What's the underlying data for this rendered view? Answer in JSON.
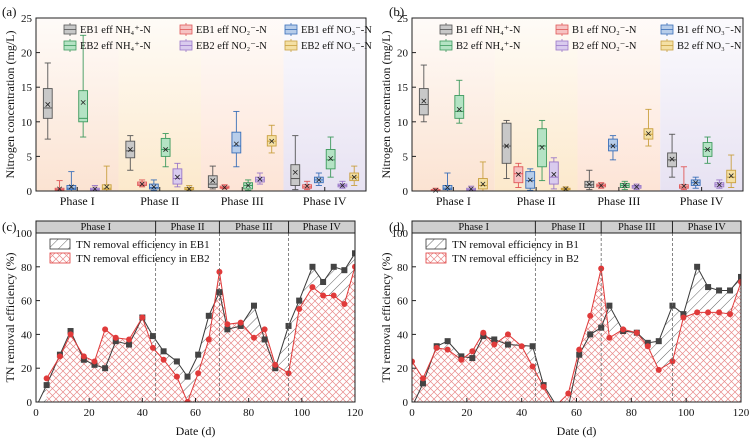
{
  "chart_data": [
    {
      "panel": "(a)",
      "type": "box",
      "ylabel": "Nitrogen concentration (mg/L)",
      "ylim": [
        0,
        25
      ],
      "yticks": [
        0,
        5,
        10,
        15,
        20,
        25
      ],
      "categories": [
        "Phase I",
        "Phase II",
        "Phase III",
        "Phase IV"
      ],
      "phase_colors": [
        "#fbe3d2",
        "#fce9cc",
        "#fde4d6",
        "#e7e2f2"
      ],
      "series": [
        {
          "name": "EB1 eff NH₄⁺-N",
          "color": "#555555",
          "fill": "#c8c8c8",
          "boxes": [
            {
              "min": 7.5,
              "q1": 10.5,
              "med": 12.0,
              "q3": 14.8,
              "max": 18.5,
              "mean": 12.5
            },
            {
              "min": 3.0,
              "q1": 4.8,
              "med": 5.8,
              "q3": 7.2,
              "max": 8.0,
              "mean": 6.0
            },
            {
              "min": 0.3,
              "q1": 0.5,
              "med": 1.0,
              "q3": 2.2,
              "max": 3.6,
              "mean": 1.5
            },
            {
              "min": 0.2,
              "q1": 0.8,
              "med": 1.8,
              "q3": 3.8,
              "max": 8.0,
              "mean": 2.7
            }
          ]
        },
        {
          "name": "EB1 eff NO₂⁻-N",
          "color": "#e05858",
          "fill": "#f6c3c3",
          "boxes": [
            {
              "min": 0.0,
              "q1": 0.1,
              "med": 0.2,
              "q3": 0.4,
              "max": 1.5,
              "mean": 0.3
            },
            {
              "min": 0.6,
              "q1": 0.8,
              "med": 1.0,
              "q3": 1.3,
              "max": 1.6,
              "mean": 1.0
            },
            {
              "min": 0.3,
              "q1": 0.4,
              "med": 0.5,
              "q3": 0.7,
              "max": 0.9,
              "mean": 0.5
            },
            {
              "min": 0.2,
              "q1": 0.4,
              "med": 0.6,
              "q3": 0.9,
              "max": 1.4,
              "mean": 0.7
            }
          ]
        },
        {
          "name": "EB1 eff NO₃⁻-N",
          "color": "#3a6fb8",
          "fill": "#b7cdea",
          "boxes": [
            {
              "min": 0.0,
              "q1": 0.2,
              "med": 0.4,
              "q3": 0.8,
              "max": 2.8,
              "mean": 0.6
            },
            {
              "min": 0.1,
              "q1": 0.3,
              "med": 0.5,
              "q3": 1.0,
              "max": 1.6,
              "mean": 0.6
            },
            {
              "min": 3.5,
              "q1": 5.5,
              "med": 6.5,
              "q3": 8.5,
              "max": 11.5,
              "mean": 6.8
            },
            {
              "min": 0.8,
              "q1": 1.2,
              "med": 1.6,
              "q3": 2.0,
              "max": 2.6,
              "mean": 1.6
            }
          ]
        },
        {
          "name": "EB2 eff NH₄⁺-N",
          "color": "#3e9a5e",
          "fill": "#b4e3c4",
          "boxes": [
            {
              "min": 7.8,
              "q1": 10.0,
              "med": 10.5,
              "q3": 14.5,
              "max": 22.5,
              "mean": 12.8
            },
            {
              "min": 3.5,
              "q1": 5.0,
              "med": 6.0,
              "q3": 7.6,
              "max": 8.3,
              "mean": 6.0
            },
            {
              "min": 0.1,
              "q1": 0.3,
              "med": 0.8,
              "q3": 1.2,
              "max": 1.6,
              "mean": 0.8
            },
            {
              "min": 2.0,
              "q1": 3.2,
              "med": 4.5,
              "q3": 6.0,
              "max": 7.8,
              "mean": 4.7
            }
          ]
        },
        {
          "name": "EB2 eff NO₂⁻-N",
          "color": "#9a78c8",
          "fill": "#d9cbee",
          "boxes": [
            {
              "min": 0.0,
              "q1": 0.1,
              "med": 0.2,
              "q3": 0.4,
              "max": 0.8,
              "mean": 0.3
            },
            {
              "min": 0.6,
              "q1": 1.0,
              "med": 1.8,
              "q3": 3.2,
              "max": 4.0,
              "mean": 2.0
            },
            {
              "min": 1.0,
              "q1": 1.3,
              "med": 1.6,
              "q3": 2.0,
              "max": 2.6,
              "mean": 1.7
            },
            {
              "min": 0.4,
              "q1": 0.6,
              "med": 0.8,
              "q3": 1.0,
              "max": 1.4,
              "mean": 0.8
            }
          ]
        },
        {
          "name": "EB2 eff NO₃⁻-N",
          "color": "#c9a040",
          "fill": "#f4e0a4",
          "boxes": [
            {
              "min": 0.0,
              "q1": 0.2,
              "med": 0.4,
              "q3": 0.9,
              "max": 3.6,
              "mean": 0.6
            },
            {
              "min": 0.1,
              "q1": 0.2,
              "med": 0.3,
              "q3": 0.5,
              "max": 0.8,
              "mean": 0.3
            },
            {
              "min": 5.5,
              "q1": 6.5,
              "med": 7.2,
              "q3": 8.0,
              "max": 9.5,
              "mean": 7.2
            },
            {
              "min": 0.8,
              "q1": 1.5,
              "med": 2.0,
              "q3": 2.6,
              "max": 3.6,
              "mean": 2.0
            }
          ]
        }
      ]
    },
    {
      "panel": "(b)",
      "type": "box",
      "ylabel": "Nitrogen concentration (mg/L)",
      "ylim": [
        0,
        25
      ],
      "yticks": [
        0,
        5,
        10,
        15,
        20,
        25
      ],
      "categories": [
        "Phase I",
        "Phase II",
        "Phase III",
        "Phase IV"
      ],
      "phase_colors": [
        "#fbe3d2",
        "#fce9cc",
        "#fde4d6",
        "#e7e2f2"
      ],
      "series": [
        {
          "name": "B1 eff NH₄⁺-N",
          "color": "#555555",
          "fill": "#c8c8c8",
          "boxes": [
            {
              "min": 10.0,
              "q1": 11.0,
              "med": 12.5,
              "q3": 14.8,
              "max": 18.2,
              "mean": 13.0
            },
            {
              "min": 1.8,
              "q1": 4.0,
              "med": 6.5,
              "q3": 9.8,
              "max": 10.2,
              "mean": 6.5
            },
            {
              "min": 0.2,
              "q1": 0.5,
              "med": 0.9,
              "q3": 1.4,
              "max": 3.0,
              "mean": 1.0
            },
            {
              "min": 2.0,
              "q1": 3.5,
              "med": 4.5,
              "q3": 5.5,
              "max": 8.2,
              "mean": 4.6
            }
          ]
        },
        {
          "name": "B1 eff NO₂⁻-N",
          "color": "#e05858",
          "fill": "#f6c3c3",
          "boxes": [
            {
              "min": 0.0,
              "q1": 0.05,
              "med": 0.1,
              "q3": 0.2,
              "max": 0.4,
              "mean": 0.1
            },
            {
              "min": 0.5,
              "q1": 1.2,
              "med": 2.5,
              "q3": 3.5,
              "max": 4.0,
              "mean": 2.4
            },
            {
              "min": 0.4,
              "q1": 0.6,
              "med": 0.8,
              "q3": 1.0,
              "max": 1.2,
              "mean": 0.8
            },
            {
              "min": 0.2,
              "q1": 0.4,
              "med": 0.6,
              "q3": 0.9,
              "max": 3.5,
              "mean": 0.7
            }
          ]
        },
        {
          "name": "B1 eff NO₃⁻-N",
          "color": "#3a6fb8",
          "fill": "#b7cdea",
          "boxes": [
            {
              "min": 0.0,
              "q1": 0.2,
              "med": 0.4,
              "q3": 0.8,
              "max": 2.6,
              "mean": 0.5
            },
            {
              "min": 0.1,
              "q1": 0.4,
              "med": 1.5,
              "q3": 2.8,
              "max": 3.2,
              "mean": 1.6
            },
            {
              "min": 4.5,
              "q1": 5.8,
              "med": 6.5,
              "q3": 7.5,
              "max": 8.0,
              "mean": 6.5
            },
            {
              "min": 0.4,
              "q1": 0.8,
              "med": 1.2,
              "q3": 1.6,
              "max": 2.0,
              "mean": 1.2
            }
          ]
        },
        {
          "name": "B2 eff NH₄⁺-N",
          "color": "#3e9a5e",
          "fill": "#b4e3c4",
          "boxes": [
            {
              "min": 9.8,
              "q1": 10.5,
              "med": 11.5,
              "q3": 13.8,
              "max": 16.0,
              "mean": 11.8
            },
            {
              "min": 1.5,
              "q1": 3.5,
              "med": 6.5,
              "q3": 9.0,
              "max": 10.2,
              "mean": 6.3
            },
            {
              "min": 0.2,
              "q1": 0.5,
              "med": 0.8,
              "q3": 1.1,
              "max": 1.4,
              "mean": 0.8
            },
            {
              "min": 4.0,
              "q1": 5.0,
              "med": 6.0,
              "q3": 7.0,
              "max": 7.8,
              "mean": 6.0
            }
          ]
        },
        {
          "name": "B2 eff NO₂⁻-N",
          "color": "#9a78c8",
          "fill": "#d9cbee",
          "boxes": [
            {
              "min": 0.0,
              "q1": 0.1,
              "med": 0.2,
              "q3": 0.4,
              "max": 0.7,
              "mean": 0.3
            },
            {
              "min": 0.3,
              "q1": 1.0,
              "med": 2.0,
              "q3": 4.2,
              "max": 4.8,
              "mean": 2.4
            },
            {
              "min": 0.2,
              "q1": 0.4,
              "med": 0.6,
              "q3": 0.8,
              "max": 1.0,
              "mean": 0.6
            },
            {
              "min": 0.4,
              "q1": 0.6,
              "med": 0.9,
              "q3": 1.2,
              "max": 1.6,
              "mean": 0.9
            }
          ]
        },
        {
          "name": "B2 eff NO₃⁻-N",
          "color": "#c9a040",
          "fill": "#f4e0a4",
          "boxes": [
            {
              "min": 0.0,
              "q1": 0.3,
              "med": 0.8,
              "q3": 1.8,
              "max": 4.2,
              "mean": 1.0
            },
            {
              "min": 0.1,
              "q1": 0.2,
              "med": 0.3,
              "q3": 0.4,
              "max": 0.6,
              "mean": 0.3
            },
            {
              "min": 6.5,
              "q1": 7.5,
              "med": 8.2,
              "q3": 9.0,
              "max": 11.8,
              "mean": 8.3
            },
            {
              "min": 0.5,
              "q1": 1.2,
              "med": 2.0,
              "q3": 3.0,
              "max": 5.2,
              "mean": 2.2
            }
          ]
        }
      ]
    },
    {
      "panel": "(c)",
      "type": "line",
      "xlabel": "Date (d)",
      "ylabel": "TN removal efficiency (%)",
      "xlim": [
        0,
        120
      ],
      "ylim": [
        0,
        100
      ],
      "xticks": [
        0,
        20,
        40,
        60,
        80,
        100,
        120
      ],
      "yticks": [
        0,
        20,
        40,
        60,
        80,
        100
      ],
      "phases": [
        {
          "label": "Phase I",
          "start": 0,
          "end": 45
        },
        {
          "label": "Phase II",
          "start": 45,
          "end": 69
        },
        {
          "label": "Phase III",
          "start": 69,
          "end": 95
        },
        {
          "label": "Phase IV",
          "start": 95,
          "end": 120
        }
      ],
      "series": [
        {
          "name": "TN removal efficiency in EB1",
          "color": "#3a3a3a",
          "marker": "square",
          "x": [
            0,
            4,
            9,
            13,
            18,
            22,
            26,
            30,
            35,
            40,
            44,
            48,
            53,
            57,
            61,
            65,
            69,
            72,
            77,
            82,
            86,
            90,
            95,
            99,
            104,
            108,
            112,
            116,
            120
          ],
          "y": [
            -3,
            10,
            28,
            42,
            25,
            22,
            20,
            36,
            34,
            50,
            39,
            30,
            24,
            15,
            28,
            51,
            65,
            43,
            45,
            57,
            37,
            20,
            45,
            60,
            80,
            71,
            80,
            78,
            88
          ]
        },
        {
          "name": "TN removal efficiency in EB2",
          "color": "#e03a3a",
          "marker": "circle",
          "x": [
            4,
            9,
            13,
            18,
            22,
            26,
            30,
            35,
            40,
            44,
            48,
            53,
            57,
            61,
            65,
            69,
            72,
            77,
            82,
            86,
            90,
            95,
            99,
            104,
            108,
            112,
            116,
            120
          ],
          "y": [
            14,
            27,
            40,
            27,
            24,
            43,
            38,
            37,
            50,
            32,
            25,
            15,
            0,
            17,
            37,
            77,
            46,
            47,
            38,
            43,
            22,
            17,
            55,
            68,
            63,
            63,
            58,
            80
          ]
        }
      ],
      "legend": [
        "TN removal efficiency in EB1",
        "TN removal efficiency in EB2"
      ]
    },
    {
      "panel": "(d)",
      "type": "line",
      "xlabel": "Date (d)",
      "ylabel": "TN removal efficiency (%)",
      "xlim": [
        0,
        120
      ],
      "ylim": [
        0,
        100
      ],
      "xticks": [
        0,
        20,
        40,
        60,
        80,
        100,
        120
      ],
      "yticks": [
        0,
        20,
        40,
        60,
        80,
        100
      ],
      "phases": [
        {
          "label": "Phase I",
          "start": 0,
          "end": 45
        },
        {
          "label": "Phase II",
          "start": 45,
          "end": 69
        },
        {
          "label": "Phase III",
          "start": 69,
          "end": 95
        },
        {
          "label": "Phase IV",
          "start": 95,
          "end": 120
        }
      ],
      "series": [
        {
          "name": "TN removal efficiency in B1",
          "color": "#3a3a3a",
          "marker": "square",
          "x": [
            0,
            4,
            9,
            13,
            18,
            22,
            26,
            30,
            35,
            44,
            48,
            53,
            57,
            61,
            65,
            69,
            72,
            77,
            82,
            86,
            90,
            95,
            99,
            104,
            108,
            112,
            116,
            120
          ],
          "y": [
            -3,
            11,
            33,
            36,
            27,
            26,
            39,
            37,
            34,
            33,
            10,
            -3,
            -3,
            28,
            40,
            44,
            57,
            42,
            41,
            35,
            36,
            57,
            52,
            80,
            68,
            66,
            66,
            74
          ]
        },
        {
          "name": "TN removal efficiency in B2",
          "color": "#e03a3a",
          "marker": "circle",
          "x": [
            0,
            4,
            9,
            13,
            18,
            22,
            26,
            30,
            35,
            40,
            44,
            48,
            52,
            57,
            61,
            65,
            69,
            72,
            77,
            82,
            86,
            90,
            95,
            99,
            104,
            108,
            112,
            116,
            120
          ],
          "y": [
            24,
            14,
            32,
            31,
            25,
            30,
            41,
            34,
            40,
            33,
            21,
            9,
            -3,
            5,
            31,
            51,
            79,
            38,
            43,
            41,
            33,
            19,
            24,
            50,
            53,
            53,
            53,
            52,
            71
          ]
        }
      ],
      "legend": [
        "TN removal efficiency in B1",
        "TN removal efficiency in B2"
      ]
    }
  ]
}
